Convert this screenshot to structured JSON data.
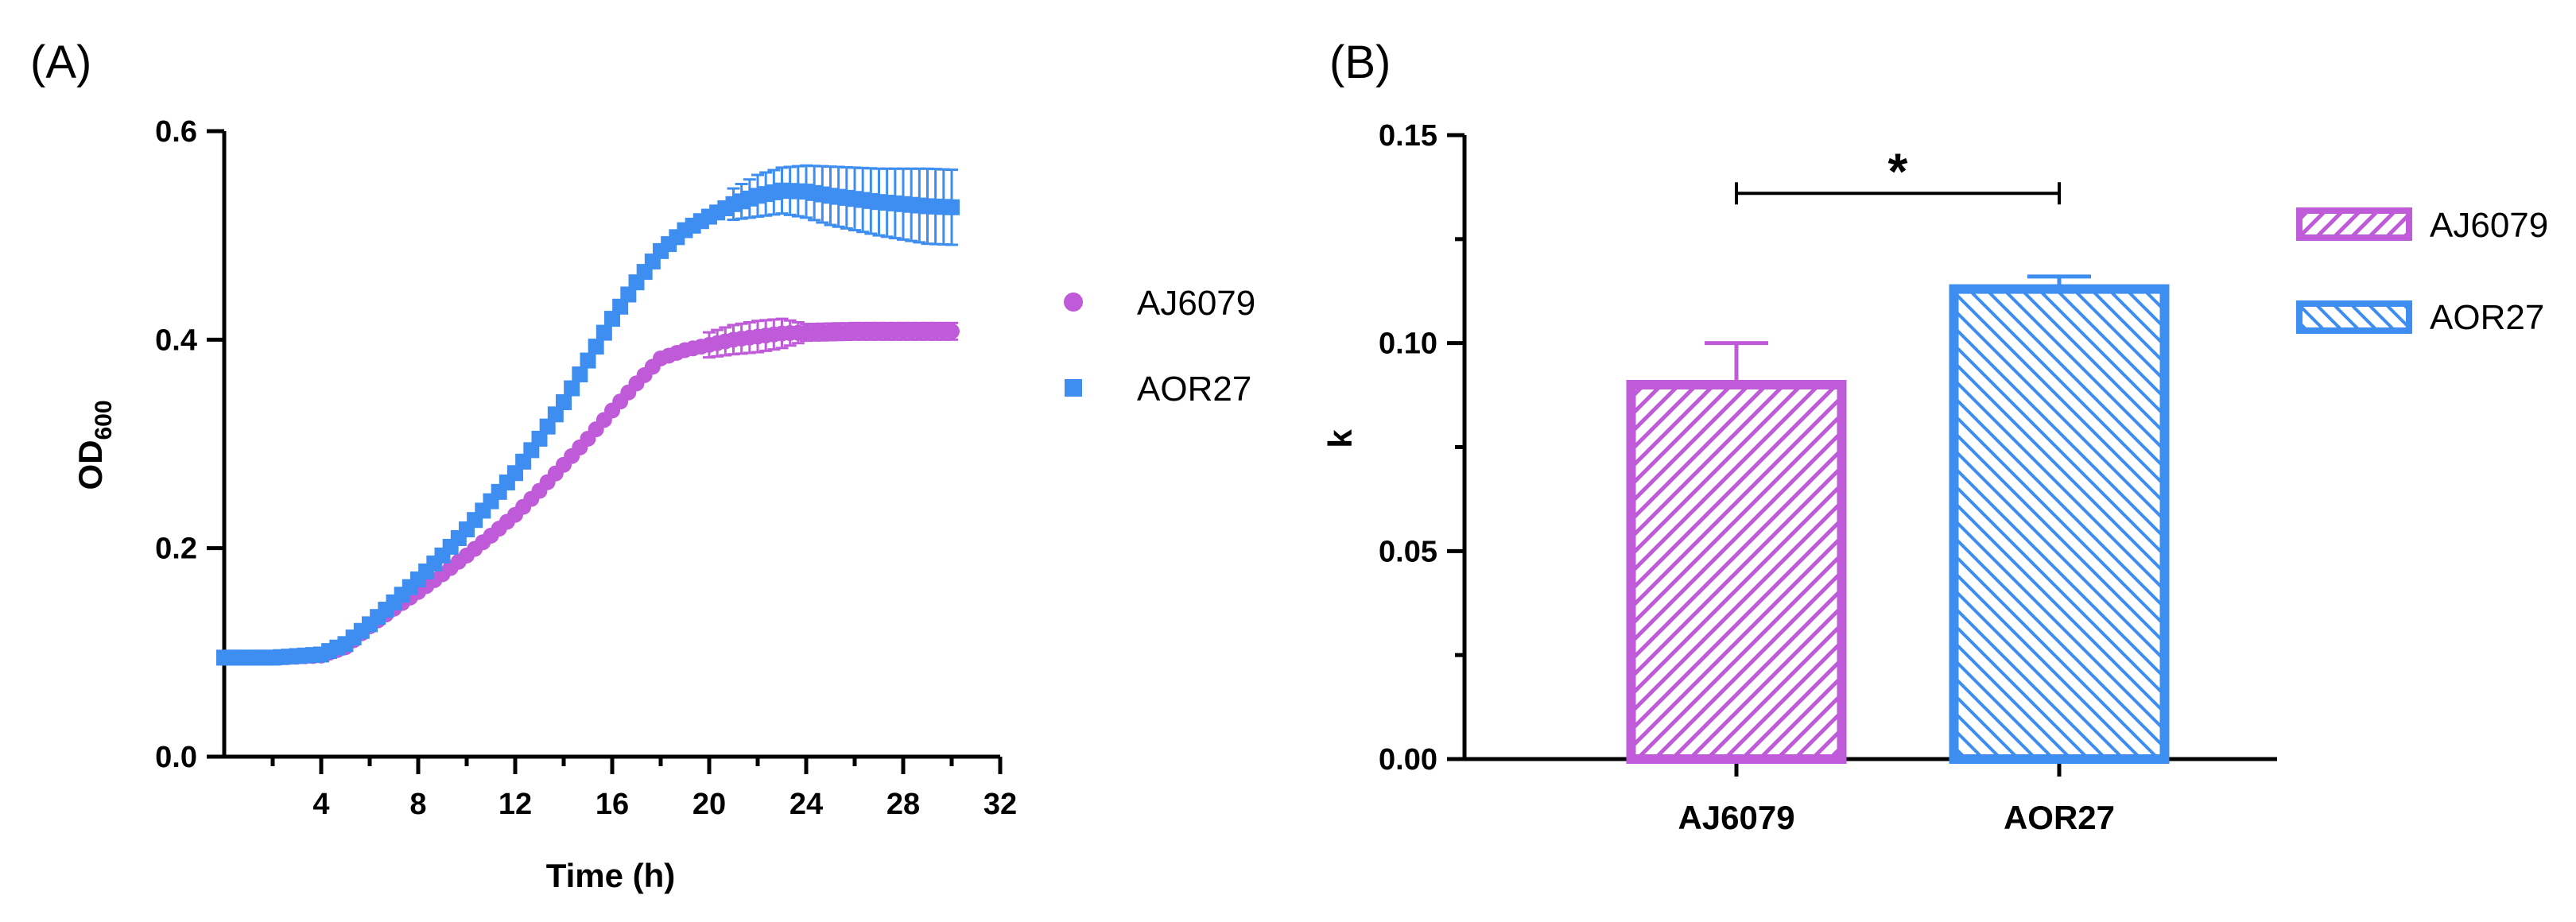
{
  "chart_data": [
    {
      "type": "scatter",
      "panel_label": "(A)",
      "xlabel": "Time (h)",
      "ylabel_main": "OD",
      "ylabel_sub": "600",
      "xlim": [
        0,
        32
      ],
      "ylim": [
        0,
        0.6
      ],
      "xticks": [
        4,
        8,
        12,
        16,
        20,
        24,
        28,
        32
      ],
      "yticks": [
        0.0,
        0.2,
        0.4,
        0.6
      ],
      "ytick_labels": [
        "0.0",
        "0.2",
        "0.4",
        "0.6"
      ],
      "grid": false,
      "legend_position": "right",
      "series": [
        {
          "name": "AJ6079",
          "marker": "circle",
          "color": "#bf5bd9",
          "key_points": [
            [
              0,
              0.095
            ],
            [
              2,
              0.095
            ],
            [
              4,
              0.097
            ],
            [
              5,
              0.105
            ],
            [
              6,
              0.125
            ],
            [
              7,
              0.142
            ],
            [
              8,
              0.158
            ],
            [
              9,
              0.175
            ],
            [
              10,
              0.193
            ],
            [
              11,
              0.212
            ],
            [
              12,
              0.232
            ],
            [
              13,
              0.255
            ],
            [
              14,
              0.28
            ],
            [
              15,
              0.305
            ],
            [
              16,
              0.332
            ],
            [
              17,
              0.358
            ],
            [
              18,
              0.382
            ],
            [
              19,
              0.39
            ],
            [
              20,
              0.395
            ],
            [
              21,
              0.4
            ],
            [
              22,
              0.403
            ],
            [
              23,
              0.406
            ],
            [
              24,
              0.407
            ],
            [
              26,
              0.408
            ],
            [
              28,
              0.408
            ],
            [
              30,
              0.408
            ]
          ],
          "error_points": [
            [
              20,
              0.012
            ],
            [
              21,
              0.014
            ],
            [
              22,
              0.015
            ],
            [
              23,
              0.014
            ],
            [
              24,
              0.008
            ]
          ]
        },
        {
          "name": "AOR27",
          "marker": "square",
          "color": "#3d8ef0",
          "key_points": [
            [
              0,
              0.095
            ],
            [
              2,
              0.095
            ],
            [
              4,
              0.098
            ],
            [
              5,
              0.108
            ],
            [
              6,
              0.127
            ],
            [
              7,
              0.148
            ],
            [
              8,
              0.17
            ],
            [
              9,
              0.193
            ],
            [
              10,
              0.218
            ],
            [
              11,
              0.245
            ],
            [
              12,
              0.272
            ],
            [
              13,
              0.305
            ],
            [
              14,
              0.34
            ],
            [
              15,
              0.38
            ],
            [
              16,
              0.42
            ],
            [
              17,
              0.455
            ],
            [
              18,
              0.485
            ],
            [
              19,
              0.505
            ],
            [
              20,
              0.518
            ],
            [
              21,
              0.53
            ],
            [
              22,
              0.538
            ],
            [
              23,
              0.543
            ],
            [
              24,
              0.542
            ],
            [
              25,
              0.538
            ],
            [
              26,
              0.535
            ],
            [
              27,
              0.532
            ],
            [
              28,
              0.53
            ],
            [
              29,
              0.528
            ],
            [
              30,
              0.527
            ]
          ],
          "error_points": [
            [
              21,
              0.015
            ],
            [
              22,
              0.02
            ],
            [
              23,
              0.022
            ],
            [
              24,
              0.025
            ],
            [
              25,
              0.028
            ],
            [
              26,
              0.03
            ],
            [
              27,
              0.032
            ],
            [
              28,
              0.034
            ],
            [
              29,
              0.036
            ],
            [
              30,
              0.036
            ]
          ]
        }
      ]
    },
    {
      "type": "bar",
      "panel_label": "(B)",
      "xlabel": "",
      "ylabel": "k",
      "ylim": [
        0,
        0.15
      ],
      "yticks": [
        0.0,
        0.05,
        0.1,
        0.15
      ],
      "ytick_labels": [
        "0.00",
        "0.05",
        "0.10",
        "0.15"
      ],
      "categories": [
        "AJ6079",
        "AOR27"
      ],
      "values": [
        0.09,
        0.113
      ],
      "errors": [
        0.01,
        0.003
      ],
      "colors": [
        "#bf5bd9",
        "#3d8ef0"
      ],
      "hatch": [
        "diagonal-up",
        "diagonal-down"
      ],
      "legend_position": "right",
      "legend": [
        "AJ6079",
        "AOR27"
      ],
      "significance": {
        "label": "*",
        "between": [
          "AJ6079",
          "AOR27"
        ],
        "y": 0.136
      }
    }
  ]
}
